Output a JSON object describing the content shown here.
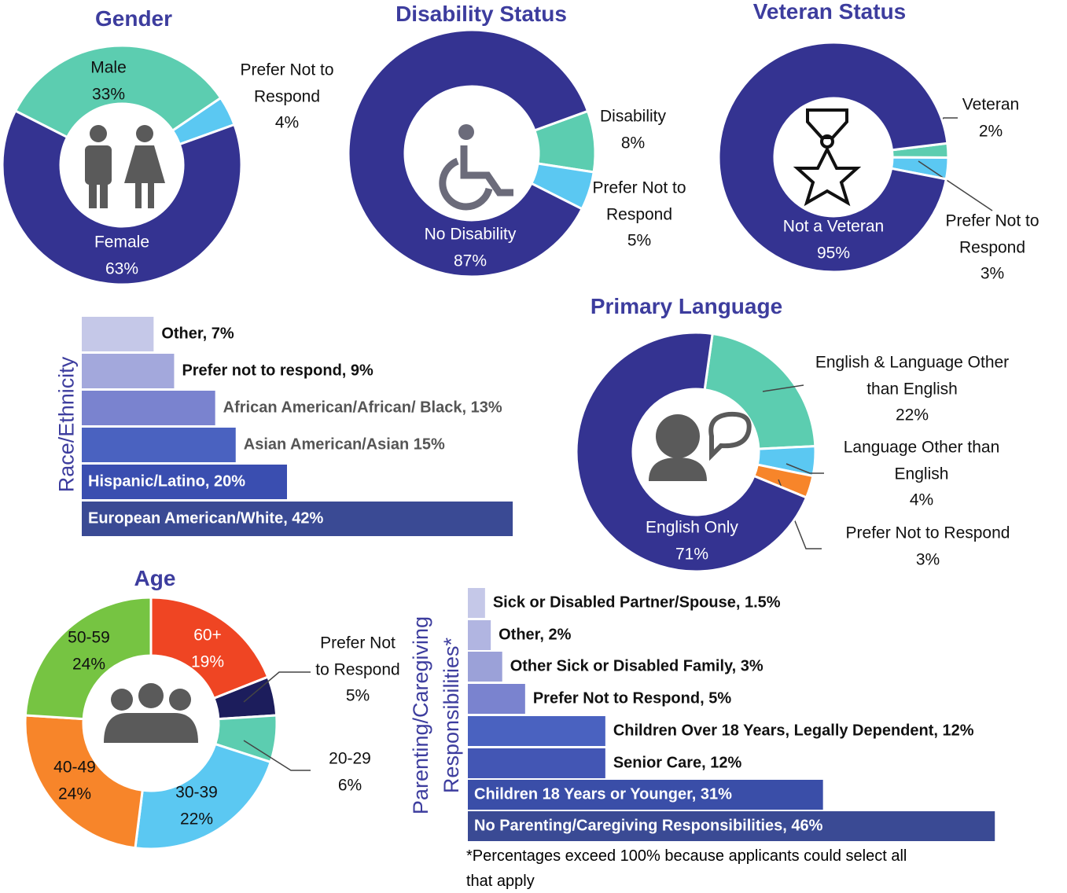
{
  "chart_data": [
    {
      "type": "donut",
      "title": "Gender",
      "start_angle": 297,
      "categories": [
        "Male",
        "Prefer Not to Respond",
        "Female"
      ],
      "values": [
        33,
        4,
        63
      ],
      "value_labels": [
        "33%",
        "4%",
        "63%"
      ],
      "colors": [
        "#5ccdb0",
        "#5bc8f2",
        "#343391"
      ]
    },
    {
      "type": "donut",
      "title": "Disability Status",
      "start_angle": 70,
      "categories": [
        "Disability",
        "Prefer Not to Respond",
        "No Disability"
      ],
      "values": [
        8,
        5,
        87
      ],
      "value_labels": [
        "8%",
        "5%",
        "87%"
      ],
      "colors": [
        "#5ccdb0",
        "#5bc8f2",
        "#343391"
      ]
    },
    {
      "type": "donut",
      "title": "Veteran Status",
      "start_angle": 83,
      "categories": [
        "Veteran",
        "Prefer Not to Respond",
        "Not a Veteran"
      ],
      "values": [
        2,
        3,
        95
      ],
      "value_labels": [
        "2%",
        "3%",
        "95%"
      ],
      "colors": [
        "#5ccdb0",
        "#5bc8f2",
        "#343391"
      ]
    },
    {
      "type": "bar",
      "orientation": "horizontal",
      "y_label": "Race/Ethnicity",
      "values": [
        7,
        9,
        13,
        15,
        20,
        42
      ],
      "value_labels": [
        "Other, 7%",
        "Prefer not to respond, 9%",
        "African American/African/ Black, 13%",
        "Asian American/Asian 15%",
        "Hispanic/Latino, 20%",
        "European American/White, 42%"
      ],
      "colors": [
        "#c5c8e8",
        "#a3a8dc",
        "#7a83cf",
        "#4a62c0",
        "#3a4eb0",
        "#3a4a94"
      ]
    },
    {
      "type": "donut",
      "title": "Primary Language",
      "start_angle": 8,
      "categories": [
        "English & Language Other than English",
        "Language Other than English",
        "Prefer Not to Respond",
        "English Only"
      ],
      "values": [
        22,
        4,
        3,
        71
      ],
      "value_labels": [
        "22%",
        "4%",
        "3%",
        "71%"
      ],
      "colors": [
        "#5ccdb0",
        "#5bc8f2",
        "#f7852a",
        "#343391"
      ]
    },
    {
      "type": "donut",
      "title": "Age",
      "start_angle": 0,
      "categories": [
        "60+",
        "Prefer Not to Respond",
        "20-29",
        "30-39",
        "40-49",
        "50-59"
      ],
      "values": [
        19,
        5,
        6,
        22,
        24,
        24
      ],
      "value_labels": [
        "19%",
        "5%",
        "6%",
        "22%",
        "24%",
        "24%"
      ],
      "colors": [
        "#ef4523",
        "#1c1d5c",
        "#5ccdb0",
        "#5bc8f2",
        "#f7852a",
        "#76c442"
      ]
    },
    {
      "type": "bar",
      "orientation": "horizontal",
      "y_label": "Parenting/Caregiving Responsibilities*",
      "values": [
        1.5,
        2,
        3,
        5,
        12,
        12,
        31,
        46
      ],
      "value_labels": [
        "Sick or Disabled Partner/Spouse, 1.5%",
        "Other, 2%",
        "Other Sick or Disabled Family, 3%",
        "Prefer Not to Respond, 5%",
        "Children Over 18 Years, Legally Dependent,  12%",
        "Senior Care, 12%",
        "Children 18 Years  or Younger, 31%",
        "No Parenting/Caregiving Responsibilities, 46%"
      ],
      "colors": [
        "#c5c8e8",
        "#b1b5e1",
        "#9ba1d8",
        "#7a83cf",
        "#4a62c0",
        "#4356b4",
        "#3a4ea8",
        "#3a4a94"
      ],
      "note": "*Percentages exceed 100% because applicants could select all that apply"
    }
  ]
}
